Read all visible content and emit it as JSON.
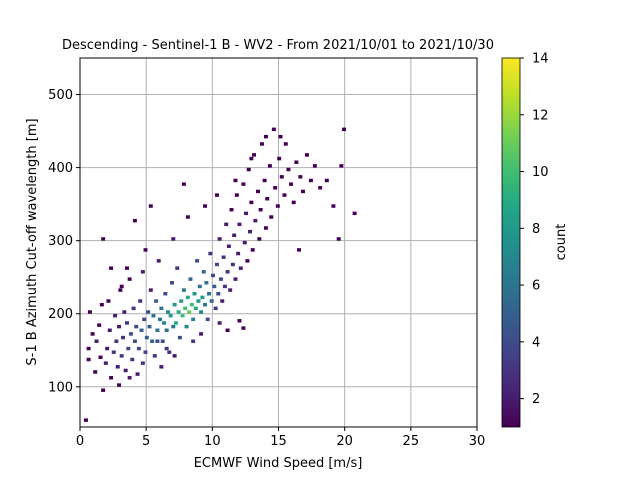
{
  "chart_data": {
    "type": "heatmap",
    "title": "Descending - Sentinel-1 B - WV2 - From 2021/10/01 to 2021/10/30",
    "xlabel": "ECMWF Wind Speed [m/s]",
    "ylabel": "S-1 B Azimuth Cut-off wavelength [m]",
    "xlim": [
      0,
      30
    ],
    "ylim": [
      45,
      550
    ],
    "x_ticks": [
      0,
      5,
      10,
      15,
      20,
      25,
      30
    ],
    "y_ticks": [
      100,
      200,
      300,
      400,
      500
    ],
    "grid": true,
    "colorbar": {
      "label": "count",
      "min": 1,
      "max": 14,
      "ticks": [
        2,
        4,
        6,
        8,
        10,
        12,
        14
      ],
      "colormap": "viridis"
    },
    "bin_size": {
      "x": 0.3,
      "y": 4.75
    },
    "cells": [
      [
        0.3,
        52,
        1
      ],
      [
        0.5,
        135,
        1
      ],
      [
        0.5,
        150,
        1
      ],
      [
        0.6,
        200,
        1
      ],
      [
        0.8,
        170,
        1
      ],
      [
        1.0,
        118,
        1
      ],
      [
        1.1,
        160,
        2
      ],
      [
        1.3,
        182,
        1
      ],
      [
        1.4,
        138,
        1
      ],
      [
        1.5,
        210,
        1
      ],
      [
        1.6,
        93,
        1
      ],
      [
        1.6,
        300,
        1
      ],
      [
        1.8,
        130,
        2
      ],
      [
        1.9,
        150,
        2
      ],
      [
        2.0,
        215,
        1
      ],
      [
        2.1,
        175,
        2
      ],
      [
        2.2,
        110,
        1
      ],
      [
        2.2,
        260,
        1
      ],
      [
        2.4,
        145,
        3
      ],
      [
        2.5,
        195,
        2
      ],
      [
        2.6,
        160,
        3
      ],
      [
        2.7,
        125,
        2
      ],
      [
        2.8,
        180,
        2
      ],
      [
        2.9,
        230,
        1
      ],
      [
        3.0,
        140,
        3
      ],
      [
        3.1,
        165,
        3
      ],
      [
        3.2,
        200,
        2
      ],
      [
        3.3,
        120,
        2
      ],
      [
        3.4,
        185,
        3
      ],
      [
        3.5,
        150,
        4
      ],
      [
        3.6,
        245,
        1
      ],
      [
        3.7,
        170,
        4
      ],
      [
        3.8,
        135,
        3
      ],
      [
        3.9,
        205,
        3
      ],
      [
        4.0,
        160,
        4
      ],
      [
        4.1,
        180,
        4
      ],
      [
        4.2,
        115,
        2
      ],
      [
        4.3,
        150,
        4
      ],
      [
        4.4,
        215,
        3
      ],
      [
        4.5,
        175,
        5
      ],
      [
        4.6,
        255,
        2
      ],
      [
        4.7,
        190,
        4
      ],
      [
        4.8,
        145,
        4
      ],
      [
        4.9,
        165,
        5
      ],
      [
        5.0,
        200,
        4
      ],
      [
        5.1,
        180,
        5
      ],
      [
        5.2,
        230,
        2
      ],
      [
        5.3,
        160,
        5
      ],
      [
        5.4,
        195,
        6
      ],
      [
        5.5,
        140,
        3
      ],
      [
        5.6,
        215,
        5
      ],
      [
        5.7,
        175,
        6
      ],
      [
        5.8,
        270,
        2
      ],
      [
        5.9,
        190,
        6
      ],
      [
        6.0,
        205,
        6
      ],
      [
        6.1,
        160,
        4
      ],
      [
        6.2,
        185,
        7
      ],
      [
        6.3,
        225,
        4
      ],
      [
        6.4,
        175,
        6
      ],
      [
        6.5,
        200,
        7
      ],
      [
        6.6,
        145,
        3
      ],
      [
        6.7,
        195,
        8
      ],
      [
        6.8,
        240,
        4
      ],
      [
        6.9,
        180,
        6
      ],
      [
        7.0,
        210,
        8
      ],
      [
        7.1,
        185,
        9
      ],
      [
        7.2,
        260,
        3
      ],
      [
        7.3,
        200,
        9
      ],
      [
        7.4,
        165,
        4
      ],
      [
        7.5,
        215,
        8
      ],
      [
        7.6,
        195,
        10
      ],
      [
        7.7,
        230,
        6
      ],
      [
        7.8,
        205,
        10
      ],
      [
        7.9,
        180,
        7
      ],
      [
        8.0,
        220,
        9
      ],
      [
        8.1,
        200,
        11
      ],
      [
        8.2,
        245,
        5
      ],
      [
        8.3,
        210,
        10
      ],
      [
        8.4,
        190,
        7
      ],
      [
        8.5,
        225,
        8
      ],
      [
        8.6,
        205,
        9
      ],
      [
        8.7,
        270,
        4
      ],
      [
        8.8,
        215,
        8
      ],
      [
        8.9,
        235,
        6
      ],
      [
        9.0,
        200,
        7
      ],
      [
        9.1,
        220,
        8
      ],
      [
        9.2,
        255,
        5
      ],
      [
        9.3,
        210,
        6
      ],
      [
        9.4,
        240,
        6
      ],
      [
        9.5,
        190,
        4
      ],
      [
        9.6,
        225,
        6
      ],
      [
        9.7,
        280,
        3
      ],
      [
        9.8,
        215,
        5
      ],
      [
        9.9,
        250,
        4
      ],
      [
        10.0,
        235,
        5
      ],
      [
        10.1,
        205,
        3
      ],
      [
        10.2,
        265,
        4
      ],
      [
        10.3,
        225,
        4
      ],
      [
        10.4,
        300,
        2
      ],
      [
        10.5,
        245,
        4
      ],
      [
        10.6,
        215,
        2
      ],
      [
        10.7,
        275,
        3
      ],
      [
        10.8,
        235,
        3
      ],
      [
        10.9,
        320,
        2
      ],
      [
        11.0,
        255,
        3
      ],
      [
        11.1,
        290,
        2
      ],
      [
        11.2,
        230,
        2
      ],
      [
        11.3,
        340,
        1
      ],
      [
        11.4,
        265,
        3
      ],
      [
        11.5,
        305,
        2
      ],
      [
        11.6,
        245,
        2
      ],
      [
        11.7,
        360,
        1
      ],
      [
        11.8,
        280,
        2
      ],
      [
        11.9,
        320,
        2
      ],
      [
        12.0,
        260,
        2
      ],
      [
        12.2,
        375,
        1
      ],
      [
        12.3,
        295,
        2
      ],
      [
        12.4,
        335,
        2
      ],
      [
        12.5,
        270,
        1
      ],
      [
        12.6,
        395,
        1
      ],
      [
        12.7,
        310,
        2
      ],
      [
        12.8,
        350,
        1
      ],
      [
        12.9,
        285,
        1
      ],
      [
        13.0,
        415,
        1
      ],
      [
        13.1,
        325,
        2
      ],
      [
        13.3,
        365,
        1
      ],
      [
        13.4,
        300,
        1
      ],
      [
        13.5,
        340,
        1
      ],
      [
        13.6,
        430,
        1
      ],
      [
        13.8,
        380,
        1
      ],
      [
        13.9,
        315,
        1
      ],
      [
        14.0,
        355,
        1
      ],
      [
        14.2,
        400,
        1
      ],
      [
        14.3,
        330,
        1
      ],
      [
        14.5,
        450,
        1
      ],
      [
        14.6,
        370,
        1
      ],
      [
        14.8,
        345,
        1
      ],
      [
        14.9,
        410,
        1
      ],
      [
        15.1,
        385,
        1
      ],
      [
        15.3,
        360,
        1
      ],
      [
        15.4,
        430,
        1
      ],
      [
        15.6,
        395,
        1
      ],
      [
        15.8,
        375,
        1
      ],
      [
        16.0,
        350,
        1
      ],
      [
        16.2,
        405,
        1
      ],
      [
        16.5,
        385,
        1
      ],
      [
        16.7,
        365,
        1
      ],
      [
        17.0,
        415,
        1
      ],
      [
        17.3,
        380,
        1
      ],
      [
        17.6,
        400,
        1
      ],
      [
        18.0,
        370,
        1
      ],
      [
        18.5,
        380,
        1
      ],
      [
        19.0,
        345,
        1
      ],
      [
        19.6,
        400,
        1
      ],
      [
        19.8,
        450,
        1
      ],
      [
        19.4,
        300,
        1
      ],
      [
        20.6,
        335,
        1
      ],
      [
        16.4,
        285,
        1
      ],
      [
        11.9,
        188,
        1
      ],
      [
        12.2,
        178,
        1
      ],
      [
        5.2,
        345,
        1
      ],
      [
        7.7,
        375,
        1
      ],
      [
        4.0,
        325,
        1
      ],
      [
        3.0,
        235,
        1
      ],
      [
        5.7,
        160,
        4
      ],
      [
        6.4,
        150,
        3
      ],
      [
        4.6,
        130,
        3
      ],
      [
        3.6,
        110,
        2
      ],
      [
        2.8,
        100,
        1
      ],
      [
        9.0,
        170,
        2
      ],
      [
        10.4,
        185,
        2
      ],
      [
        11.0,
        175,
        1
      ],
      [
        8.4,
        160,
        3
      ],
      [
        7.0,
        140,
        2
      ],
      [
        6.0,
        125,
        2
      ],
      [
        3.4,
        260,
        1
      ],
      [
        4.8,
        285,
        1
      ],
      [
        6.9,
        300,
        2
      ],
      [
        8.0,
        330,
        1
      ],
      [
        9.3,
        345,
        1
      ],
      [
        10.2,
        360,
        1
      ],
      [
        11.6,
        380,
        1
      ],
      [
        12.8,
        410,
        1
      ],
      [
        13.9,
        440,
        1
      ],
      [
        15.0,
        440,
        1
      ]
    ]
  }
}
